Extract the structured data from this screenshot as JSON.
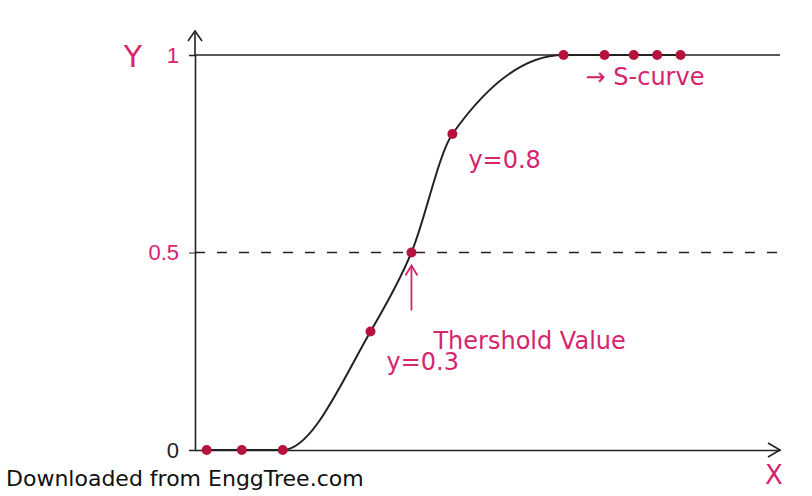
{
  "chart_data": {
    "type": "line",
    "xlabel": "X",
    "ylabel": "Y",
    "x": [
      0.2,
      0.8,
      1.5,
      3.0,
      3.7,
      4.4,
      6.3,
      7.0,
      7.5,
      7.9,
      8.3
    ],
    "series": [
      {
        "values": [
          0,
          0,
          0,
          0.3,
          0.5,
          0.8,
          1,
          1,
          1,
          1,
          1
        ],
        "color": "#b5123c",
        "marker": "circle",
        "line_style": "solid"
      }
    ],
    "xlim": [
      0,
      10
    ],
    "ylim": [
      0,
      1
    ],
    "yticks": [
      0,
      0.5,
      1
    ],
    "tick_labels": "y",
    "threshold": 0.5,
    "asymptote": 1,
    "annotations": [
      "→ S-curve",
      "y=0.8",
      "Thershold Value",
      "y=0.3"
    ],
    "watermark": "Downloaded from EnggTree.com"
  }
}
